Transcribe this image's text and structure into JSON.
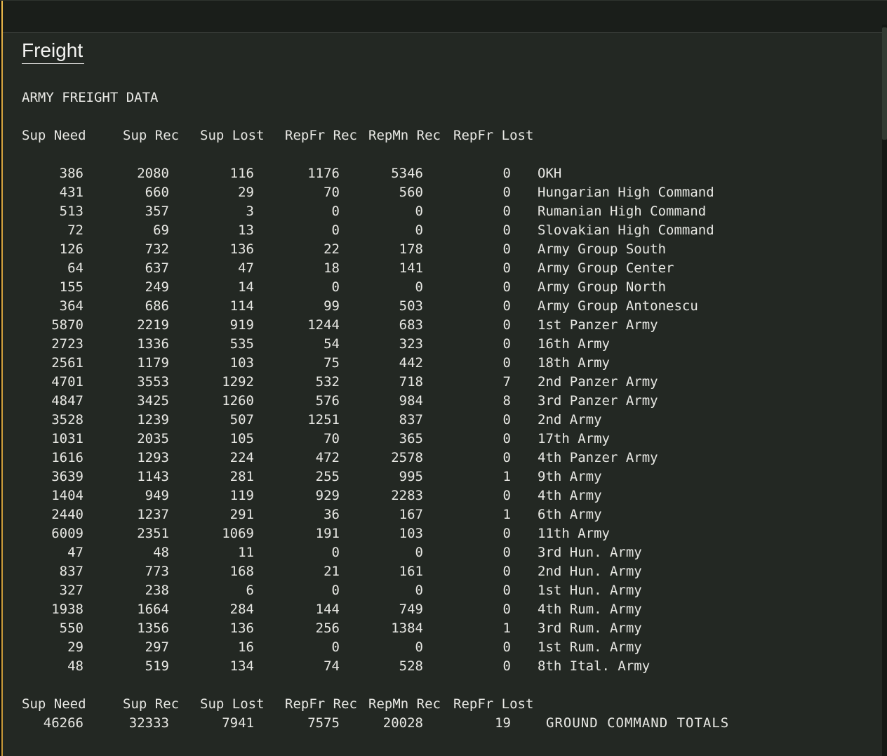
{
  "window": {
    "title": "Freight"
  },
  "report": {
    "heading": "ARMY FREIGHT DATA",
    "columns": [
      "Sup Need",
      "Sup Rec",
      "Sup Lost",
      "RepFr Rec",
      "RepMn Rec",
      "RepFr Lost"
    ],
    "rows": [
      {
        "values": [
          386,
          2080,
          116,
          1176,
          5346,
          0
        ],
        "name": "OKH"
      },
      {
        "values": [
          431,
          660,
          29,
          70,
          560,
          0
        ],
        "name": "Hungarian High Command"
      },
      {
        "values": [
          513,
          357,
          3,
          0,
          0,
          0
        ],
        "name": "Rumanian High Command"
      },
      {
        "values": [
          72,
          69,
          13,
          0,
          0,
          0
        ],
        "name": "Slovakian High Command"
      },
      {
        "values": [
          126,
          732,
          136,
          22,
          178,
          0
        ],
        "name": "Army Group South"
      },
      {
        "values": [
          64,
          637,
          47,
          18,
          141,
          0
        ],
        "name": "Army Group Center"
      },
      {
        "values": [
          155,
          249,
          14,
          0,
          0,
          0
        ],
        "name": "Army Group North"
      },
      {
        "values": [
          364,
          686,
          114,
          99,
          503,
          0
        ],
        "name": "Army Group Antonescu"
      },
      {
        "values": [
          5870,
          2219,
          919,
          1244,
          683,
          0
        ],
        "name": "1st Panzer Army"
      },
      {
        "values": [
          2723,
          1336,
          535,
          54,
          323,
          0
        ],
        "name": "16th Army"
      },
      {
        "values": [
          2561,
          1179,
          103,
          75,
          442,
          0
        ],
        "name": "18th Army"
      },
      {
        "values": [
          4701,
          3553,
          1292,
          532,
          718,
          7
        ],
        "name": "2nd Panzer Army"
      },
      {
        "values": [
          4847,
          3425,
          1260,
          576,
          984,
          8
        ],
        "name": "3rd Panzer Army"
      },
      {
        "values": [
          3528,
          1239,
          507,
          1251,
          837,
          0
        ],
        "name": "2nd Army"
      },
      {
        "values": [
          1031,
          2035,
          105,
          70,
          365,
          0
        ],
        "name": "17th Army"
      },
      {
        "values": [
          1616,
          1293,
          224,
          472,
          2578,
          0
        ],
        "name": "4th Panzer Army"
      },
      {
        "values": [
          3639,
          1143,
          281,
          255,
          995,
          1
        ],
        "name": "9th Army"
      },
      {
        "values": [
          1404,
          949,
          119,
          929,
          2283,
          0
        ],
        "name": "4th Army"
      },
      {
        "values": [
          2440,
          1237,
          291,
          36,
          167,
          1
        ],
        "name": "6th Army"
      },
      {
        "values": [
          6009,
          2351,
          1069,
          191,
          103,
          0
        ],
        "name": "11th Army"
      },
      {
        "values": [
          47,
          48,
          11,
          0,
          0,
          0
        ],
        "name": "3rd Hun. Army"
      },
      {
        "values": [
          837,
          773,
          168,
          21,
          161,
          0
        ],
        "name": "2nd Hun. Army"
      },
      {
        "values": [
          327,
          238,
          6,
          0,
          0,
          0
        ],
        "name": "1st Hun. Army"
      },
      {
        "values": [
          1938,
          1664,
          284,
          144,
          749,
          0
        ],
        "name": "4th Rum. Army"
      },
      {
        "values": [
          550,
          1356,
          136,
          256,
          1384,
          1
        ],
        "name": "3rd Rum. Army"
      },
      {
        "values": [
          29,
          297,
          16,
          0,
          0,
          0
        ],
        "name": "1st Rum. Army"
      },
      {
        "values": [
          48,
          519,
          134,
          74,
          528,
          0
        ],
        "name": "8th Ital. Army"
      }
    ],
    "totals": {
      "values": [
        46266,
        32333,
        7941,
        7575,
        20028,
        19
      ],
      "label": "GROUND COMMAND TOTALS"
    },
    "next_line_partial": "1"
  },
  "colors": {
    "background": "#232823",
    "topbar": "#1a1e1a",
    "text": "#e8e8e4",
    "accent_border": "#daa741",
    "title_underline": "#c9c9c7"
  }
}
